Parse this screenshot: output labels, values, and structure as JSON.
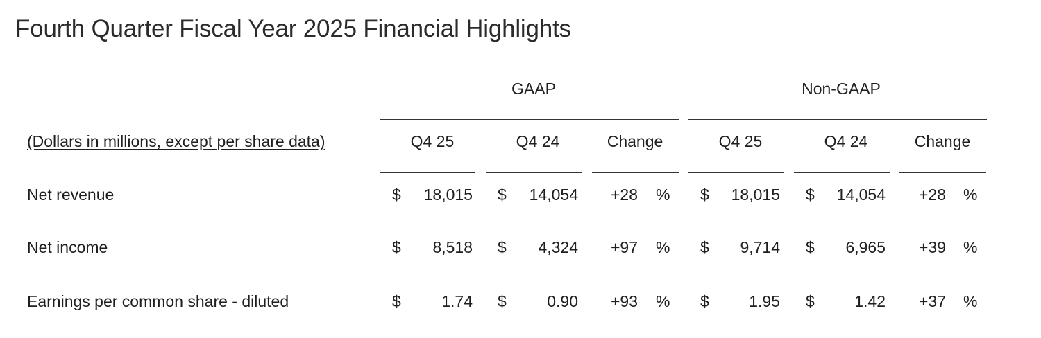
{
  "title": "Fourth Quarter Fiscal Year 2025 Financial Highlights",
  "groups": {
    "gaap": "GAAP",
    "non_gaap": "Non-GAAP"
  },
  "units_label": "(Dollars in millions, except per share data)",
  "columns": {
    "gaap": [
      "Q4 25",
      "Q4 24",
      "Change"
    ],
    "non_gaap": [
      "Q4 25",
      "Q4 24",
      "Change"
    ]
  },
  "currency_symbol": "$",
  "percent_symbol": "%",
  "rows": [
    {
      "label": "Net revenue",
      "gaap": {
        "q4_25": "18,015",
        "q4_24": "14,054",
        "change": "+28"
      },
      "non_gaap": {
        "q4_25": "18,015",
        "q4_24": "14,054",
        "change": "+28"
      }
    },
    {
      "label": "Net income",
      "gaap": {
        "q4_25": "8,518",
        "q4_24": "4,324",
        "change": "+97"
      },
      "non_gaap": {
        "q4_25": "9,714",
        "q4_24": "6,965",
        "change": "+39"
      }
    },
    {
      "label": "Earnings per common share - diluted",
      "gaap": {
        "q4_25": "1.74",
        "q4_24": "0.90",
        "change": "+93"
      },
      "non_gaap": {
        "q4_25": "1.95",
        "q4_24": "1.42",
        "change": "+37"
      }
    }
  ]
}
